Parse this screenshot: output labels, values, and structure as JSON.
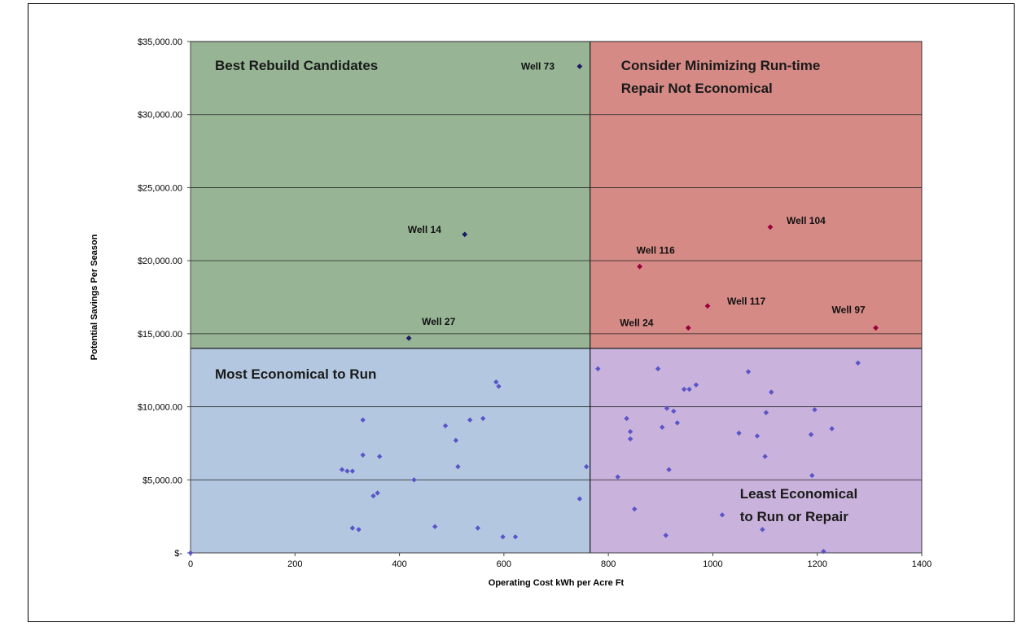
{
  "chart_data": {
    "type": "scatter",
    "xlabel": "Operating Cost kWh per Acre Ft",
    "ylabel": "Potential Savings Per Season",
    "xlim": [
      0,
      1400
    ],
    "ylim": [
      0,
      35000
    ],
    "x_ticks": [
      0,
      200,
      400,
      600,
      800,
      1000,
      1200,
      1400
    ],
    "x_tick_labels": [
      "0",
      "200",
      "400",
      "600",
      "800",
      "1000",
      "1200",
      "1400"
    ],
    "y_ticks": [
      0,
      5000,
      10000,
      15000,
      20000,
      25000,
      30000,
      35000
    ],
    "y_tick_labels": [
      "$-",
      "$5,000.00",
      "$10,000.00",
      "$15,000.00",
      "$20,000.00",
      "$25,000.00",
      "$30,000.00",
      "$35,000.00"
    ],
    "grid": "horizontal",
    "quadrant_split": {
      "x": 765,
      "y": 14000
    },
    "regions": [
      {
        "name": "top-left",
        "label_lines": [
          "Best Rebuild Candidates"
        ],
        "color": "#97b595"
      },
      {
        "name": "top-right",
        "label_lines": [
          "Consider Minimizing Run-time",
          "Repair Not Economical"
        ],
        "color": "#d58a86"
      },
      {
        "name": "bottom-left",
        "label_lines": [
          "Most Economical to Run"
        ],
        "color": "#b3c8e0"
      },
      {
        "name": "bottom-right",
        "label_lines": [
          "Least Economical",
          "to Run or Repair"
        ],
        "color": "#c9b2db"
      }
    ],
    "labeled_points": [
      {
        "label": "Well 73",
        "x": 745,
        "y": 33300,
        "color": "#1a1a66"
      },
      {
        "label": "Well 14",
        "x": 525,
        "y": 21800,
        "color": "#1a1a66"
      },
      {
        "label": "Well 27",
        "x": 418,
        "y": 14700,
        "color": "#1a1a66"
      },
      {
        "label": "Well 104",
        "x": 1110,
        "y": 22300,
        "color": "#99003d"
      },
      {
        "label": "Well 116",
        "x": 860,
        "y": 19600,
        "color": "#99003d"
      },
      {
        "label": "Well 117",
        "x": 990,
        "y": 16900,
        "color": "#99003d"
      },
      {
        "label": "Well 24",
        "x": 953,
        "y": 15400,
        "color": "#99003d"
      },
      {
        "label": "Well 97",
        "x": 1312,
        "y": 15400,
        "color": "#99003d"
      }
    ],
    "series": [
      {
        "color": "#5a54c8",
        "points": [
          [
            0,
            0
          ],
          [
            290,
            5700
          ],
          [
            300,
            5600
          ],
          [
            310,
            5600
          ],
          [
            330,
            6700
          ],
          [
            330,
            9100
          ],
          [
            362,
            6600
          ],
          [
            350,
            3900
          ],
          [
            358,
            4100
          ],
          [
            310,
            1700
          ],
          [
            322,
            1600
          ],
          [
            428,
            5000
          ],
          [
            468,
            1800
          ],
          [
            488,
            8700
          ],
          [
            508,
            7700
          ],
          [
            512,
            5900
          ],
          [
            535,
            9100
          ],
          [
            560,
            9200
          ],
          [
            585,
            11700
          ],
          [
            590,
            11400
          ],
          [
            550,
            1700
          ],
          [
            598,
            1100
          ],
          [
            622,
            1100
          ],
          [
            745,
            3700
          ],
          [
            758,
            5900
          ],
          [
            780,
            12600
          ],
          [
            818,
            5200
          ],
          [
            835,
            9200
          ],
          [
            842,
            8300
          ],
          [
            842,
            7800
          ],
          [
            850,
            3000
          ],
          [
            895,
            12600
          ],
          [
            903,
            8600
          ],
          [
            910,
            1200
          ],
          [
            912,
            9900
          ],
          [
            916,
            5700
          ],
          [
            925,
            9700
          ],
          [
            932,
            8900
          ],
          [
            945,
            11200
          ],
          [
            955,
            11200
          ],
          [
            968,
            11500
          ],
          [
            1018,
            2600
          ],
          [
            1050,
            8200
          ],
          [
            1068,
            12400
          ],
          [
            1085,
            8000
          ],
          [
            1095,
            1600
          ],
          [
            1100,
            6600
          ],
          [
            1102,
            9600
          ],
          [
            1112,
            11000
          ],
          [
            1188,
            8100
          ],
          [
            1190,
            5300
          ],
          [
            1195,
            9800
          ],
          [
            1212,
            100
          ],
          [
            1228,
            8500
          ],
          [
            1278,
            13000
          ]
        ]
      }
    ]
  }
}
